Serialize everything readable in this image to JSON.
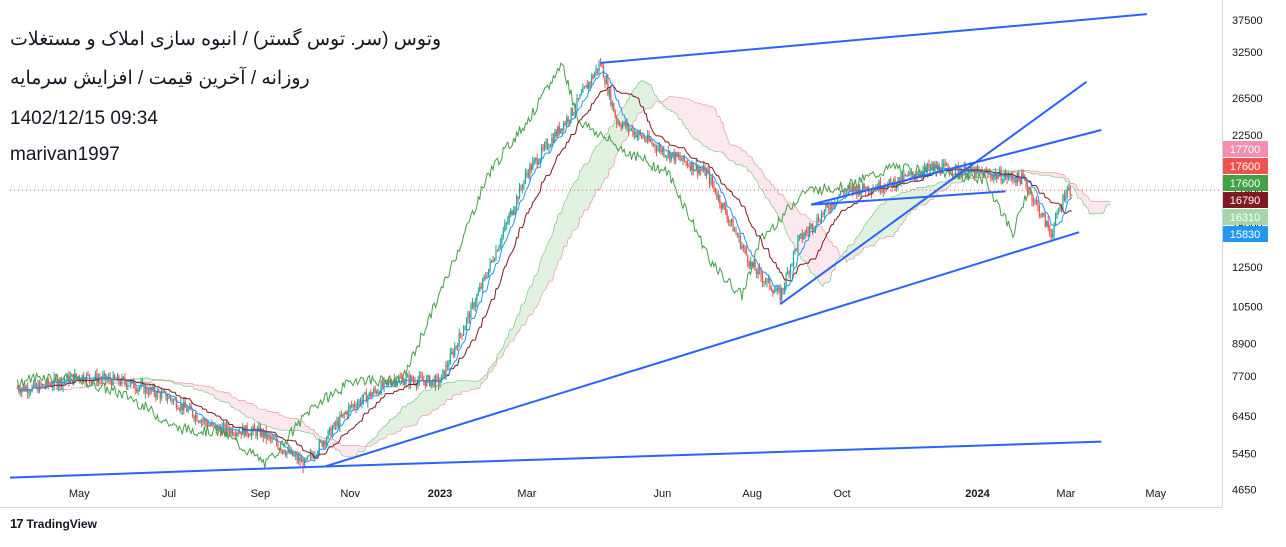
{
  "header": {
    "symbol_title": "وتوس (سر. توس گستر) / انبوه سازی املاک و مستغلات",
    "subtitle": "روزانه / آخرین قیمت / افزایش سرمایه",
    "datetime": "1402/12/15 09:34",
    "author": "marivan1997"
  },
  "brand": {
    "logo_text": "17",
    "name": "TradingView"
  },
  "colors": {
    "candle_up": "#26a69a",
    "candle_down": "#ef5350",
    "trendline": "#2962ff",
    "conversion_line": "#2196f3",
    "base_line": "#801922",
    "lagging_span": "#43a047",
    "cloud_bull": "#a5d6a7",
    "cloud_bear": "#f8bbd0",
    "last_price_line": "#ef5350"
  },
  "chart_data": {
    "type": "candlestick",
    "scale": "log",
    "ylim": [
      4300,
      41000
    ],
    "y_ticks": [
      37500,
      32500,
      26500,
      22500,
      17500,
      15000,
      12500,
      10500,
      8900,
      7700,
      6450,
      5450,
      4650
    ],
    "x_ticks": [
      "May",
      "Jul",
      "Sep",
      "Nov",
      "2023",
      "Mar",
      "Jun",
      "Aug",
      "Oct",
      "2024",
      "Mar",
      "May"
    ],
    "price_labels": [
      {
        "value": "17700",
        "color": "#f48fb1"
      },
      {
        "value": "17600",
        "color": "#ef5350"
      },
      {
        "value": "17600",
        "color": "#43a047"
      },
      {
        "value": "16790",
        "color": "#801922"
      },
      {
        "value": "16310",
        "color": "#a5d6a7"
      },
      {
        "value": "15830",
        "color": "#2196f3"
      }
    ],
    "last_price": 17600,
    "price_series": [
      [
        "2022-04-01",
        7300
      ],
      [
        "2022-05-01",
        7700
      ],
      [
        "2022-06-01",
        7500
      ],
      [
        "2022-07-01",
        7000
      ],
      [
        "2022-08-01",
        6100
      ],
      [
        "2022-09-01",
        6000
      ],
      [
        "2022-10-01",
        5200
      ],
      [
        "2022-11-01",
        6700
      ],
      [
        "2022-12-01",
        7600
      ],
      [
        "2023-01-01",
        7500
      ],
      [
        "2023-02-01",
        12000
      ],
      [
        "2023-03-01",
        19000
      ],
      [
        "2023-04-01",
        25000
      ],
      [
        "2023-04-20",
        31000
      ],
      [
        "2023-05-01",
        24000
      ],
      [
        "2023-06-01",
        21000
      ],
      [
        "2023-07-01",
        19000
      ],
      [
        "2023-08-01",
        12500
      ],
      [
        "2023-08-20",
        11000
      ],
      [
        "2023-09-01",
        14000
      ],
      [
        "2023-10-01",
        17500
      ],
      [
        "2023-11-01",
        18000
      ],
      [
        "2023-12-01",
        19500
      ],
      [
        "2024-01-01",
        19000
      ],
      [
        "2024-02-01",
        18500
      ],
      [
        "2024-02-20",
        14500
      ],
      [
        "2024-03-01",
        17600
      ]
    ],
    "trendlines": [
      {
        "from": [
          "2022-03-15",
          4900
        ],
        "to": [
          "2022-10-15",
          5150
        ]
      },
      {
        "from": [
          "2022-10-15",
          5150
        ],
        "to": [
          "2024-03-10",
          14600
        ]
      },
      {
        "from": [
          "2022-10-15",
          5150
        ],
        "to": [
          "2024-03-25",
          5750
        ]
      },
      {
        "from": [
          "2023-04-20",
          31000
        ],
        "to": [
          "2024-04-25",
          38500
        ]
      },
      {
        "from": [
          "2023-08-20",
          10600
        ],
        "to": [
          "2024-03-15",
          28500
        ]
      },
      {
        "from": [
          "2023-09-10",
          16500
        ],
        "to": [
          "2024-03-25",
          23000
        ]
      },
      {
        "from": [
          "2023-09-10",
          16500
        ],
        "to": [
          "2024-01-20",
          17500
        ]
      }
    ]
  }
}
